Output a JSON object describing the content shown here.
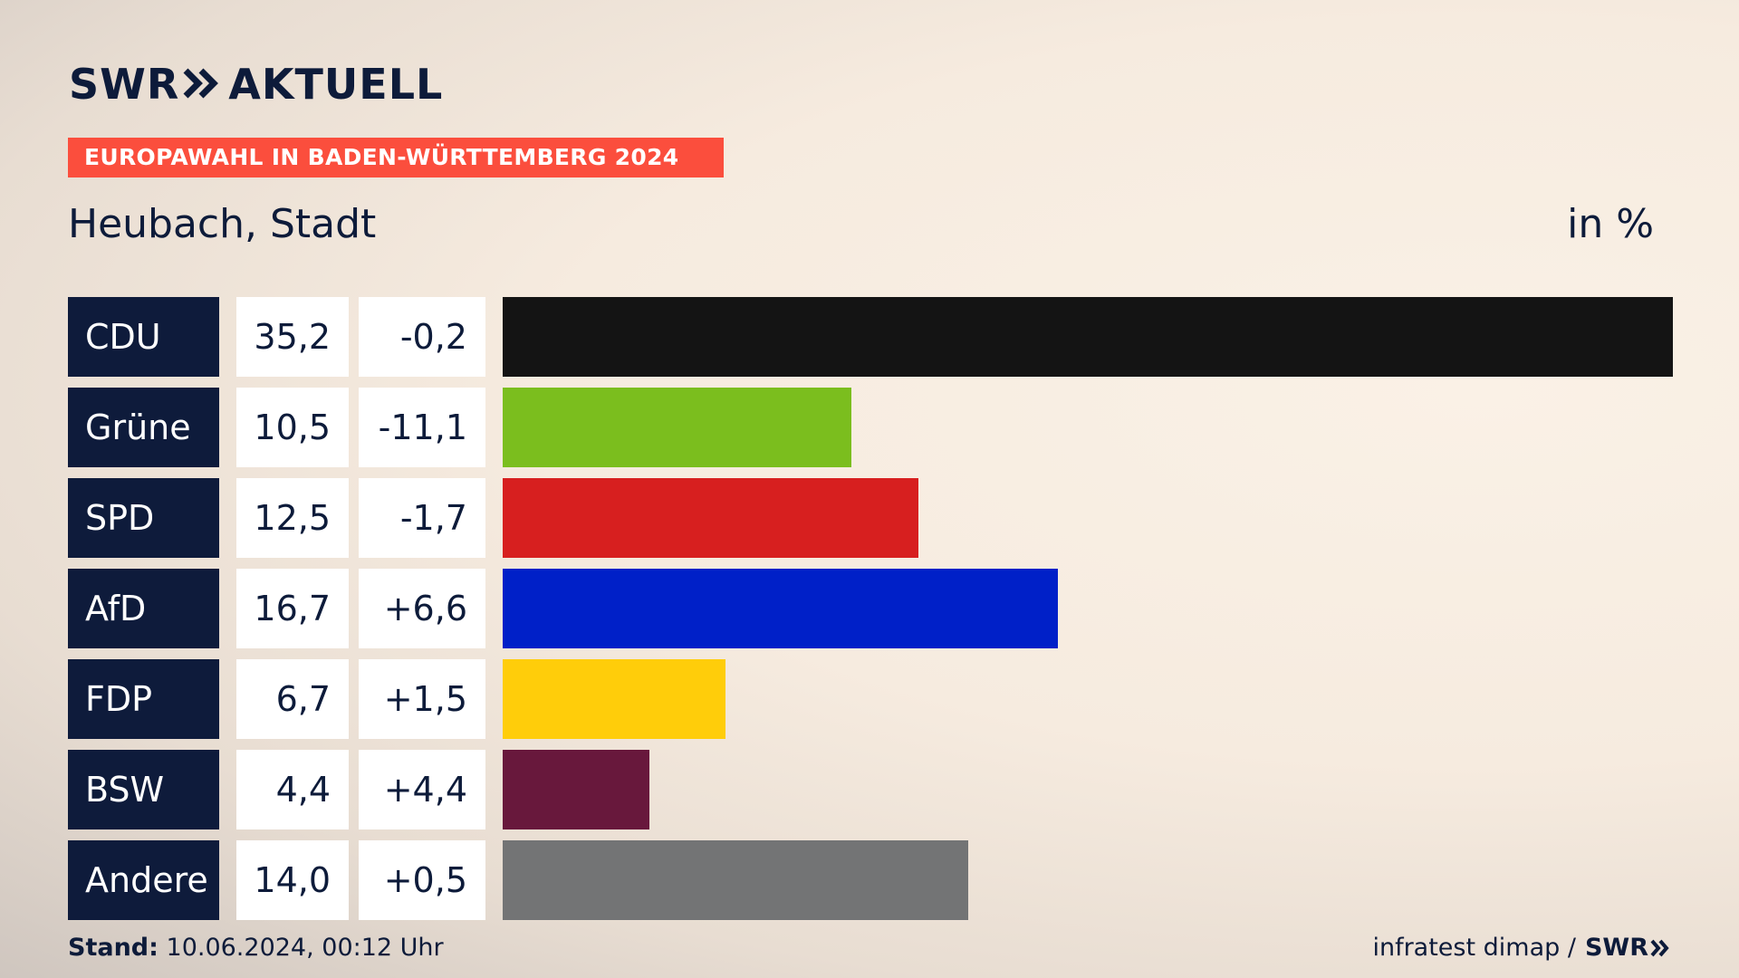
{
  "header": {
    "logo_left": "SWR",
    "logo_right": "AKTUELL",
    "banner": "EUROPAWAHL IN BADEN-WÜRTTEMBERG 2024",
    "place": "Heubach, Stadt",
    "unit": "in %"
  },
  "colors": {
    "navy": "#0e1b3b",
    "banner": "#fb4e3d"
  },
  "chart_data": {
    "type": "bar",
    "orientation": "horizontal",
    "xlim": [
      0,
      35.2
    ],
    "rows": [
      {
        "party": "CDU",
        "value": 35.2,
        "value_label": "35,2",
        "diff_label": "-0,2",
        "color": "#141414"
      },
      {
        "party": "Grüne",
        "value": 10.5,
        "value_label": "10,5",
        "diff_label": "-11,1",
        "color": "#7bbe1e"
      },
      {
        "party": "SPD",
        "value": 12.5,
        "value_label": "12,5",
        "diff_label": "-1,7",
        "color": "#d71f1f"
      },
      {
        "party": "AfD",
        "value": 16.7,
        "value_label": "16,7",
        "diff_label": "+6,6",
        "color": "#0020c8"
      },
      {
        "party": "FDP",
        "value": 6.7,
        "value_label": "6,7",
        "diff_label": "+1,5",
        "color": "#ffcd0a"
      },
      {
        "party": "BSW",
        "value": 4.4,
        "value_label": "4,4",
        "diff_label": "+4,4",
        "color": "#68183c"
      },
      {
        "party": "Andere",
        "value": 14.0,
        "value_label": "14,0",
        "diff_label": "+0,5",
        "color": "#737475"
      }
    ]
  },
  "footer": {
    "stand_label": "Stand:",
    "stand_value": "10.06.2024, 00:12 Uhr",
    "source": "infratest dimap /",
    "source_logo": "SWR"
  }
}
